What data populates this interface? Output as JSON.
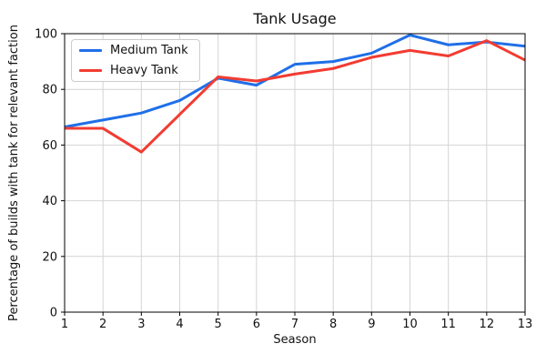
{
  "chart_data": {
    "type": "line",
    "title": "Tank Usage",
    "xlabel": "Season",
    "ylabel": "Percentage of builds with tank for relevant faction",
    "x": [
      1,
      2,
      3,
      4,
      5,
      6,
      7,
      8,
      9,
      10,
      11,
      12,
      13
    ],
    "series": [
      {
        "name": "Medium Tank",
        "color": "#1f6fe8",
        "values": [
          66.5,
          69,
          71.5,
          76,
          84,
          81.5,
          89,
          90,
          93,
          99.5,
          96,
          97,
          95.5
        ]
      },
      {
        "name": "Heavy Tank",
        "color": "#f23c32",
        "values": [
          66,
          66,
          57.5,
          71,
          84.5,
          83,
          85.5,
          87.5,
          91.5,
          94,
          92,
          97.5,
          90.5
        ]
      }
    ],
    "xlim": [
      1,
      13
    ],
    "ylim": [
      0,
      100
    ],
    "x_ticks": [
      1,
      2,
      3,
      4,
      5,
      6,
      7,
      8,
      9,
      10,
      11,
      12,
      13
    ],
    "y_ticks": [
      0,
      20,
      40,
      60,
      80,
      100
    ],
    "grid": true,
    "grid_color": "#d4d4d4",
    "spine_color": "#000000",
    "legend_position": "upper left"
  }
}
